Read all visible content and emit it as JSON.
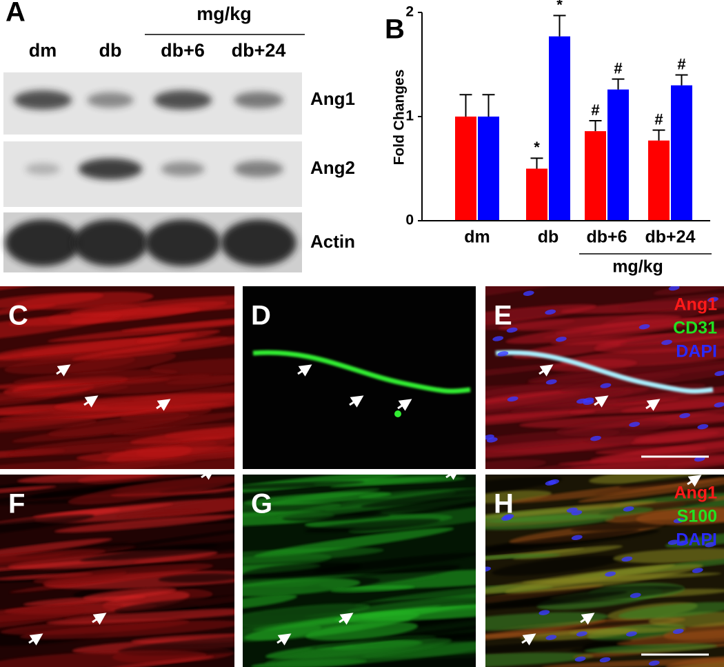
{
  "blot": {
    "panel_label": "A",
    "group_label": "mg/kg",
    "lanes": [
      "dm",
      "db",
      "db+6",
      "db+24"
    ],
    "bands": [
      "Ang1",
      "Ang2",
      "Actin"
    ]
  },
  "chart_data": {
    "type": "bar",
    "panel_label": "B",
    "y_label": "Fold Changes",
    "categories": [
      "dm",
      "db",
      "db+6",
      "db+24"
    ],
    "x_group_label": "mg/kg",
    "series": [
      {
        "color": "#ff0000",
        "values": [
          1.0,
          0.5,
          0.86,
          0.77
        ],
        "errors": [
          0.21,
          0.1,
          0.1,
          0.1
        ],
        "significance": [
          null,
          "*",
          "#",
          "#"
        ]
      },
      {
        "color": "#0000ff",
        "values": [
          1.0,
          1.77,
          1.26,
          1.3
        ],
        "errors": [
          0.21,
          0.2,
          0.1,
          0.1
        ],
        "significance": [
          null,
          "*",
          "#",
          "#"
        ]
      }
    ],
    "ylim": [
      0,
      2
    ],
    "yticks": [
      0,
      1,
      2
    ]
  },
  "images": [
    {
      "panel_label": "C"
    },
    {
      "panel_label": "D"
    },
    {
      "panel_label": "E",
      "legend": [
        {
          "text": "Ang1",
          "color": "#ff1a1a"
        },
        {
          "text": "CD31",
          "color": "#22e022"
        },
        {
          "text": "DAPI",
          "color": "#2a2aff"
        }
      ]
    },
    {
      "panel_label": "F"
    },
    {
      "panel_label": "G"
    },
    {
      "panel_label": "H",
      "legend": [
        {
          "text": "Ang1",
          "color": "#ff1a1a"
        },
        {
          "text": "S100",
          "color": "#22e022"
        },
        {
          "text": "DAPI",
          "color": "#2a2aff"
        }
      ]
    }
  ]
}
